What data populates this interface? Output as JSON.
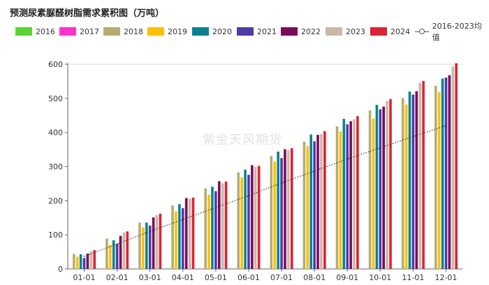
{
  "title": "预测尿素脲醛树脂需求累积图（万吨）",
  "watermark": "紫金天风期货",
  "chart_data": {
    "type": "bar",
    "categories": [
      "01-01",
      "02-01",
      "03-01",
      "04-01",
      "05-01",
      "06-01",
      "07-01",
      "08-01",
      "09-01",
      "10-01",
      "11-01",
      "12-01"
    ],
    "ylim": [
      0,
      600
    ],
    "yticks": [
      0,
      100,
      200,
      300,
      400,
      500,
      600
    ],
    "series": [
      {
        "name": "2016",
        "color": "#5ad233",
        "values": [
          null,
          null,
          null,
          null,
          null,
          null,
          null,
          null,
          null,
          null,
          null,
          null
        ]
      },
      {
        "name": "2017",
        "color": "#ff33cc",
        "values": [
          null,
          null,
          null,
          null,
          null,
          null,
          null,
          null,
          null,
          null,
          null,
          null
        ]
      },
      {
        "name": "2018",
        "color": "#b5ac6f",
        "values": [
          44,
          89,
          136,
          186,
          236,
          283,
          331,
          373,
          418,
          465,
          501,
          537
        ]
      },
      {
        "name": "2019",
        "color": "#ffc000",
        "values": [
          36,
          70,
          122,
          169,
          218,
          268,
          315,
          360,
          403,
          441,
          482,
          518
        ]
      },
      {
        "name": "2020",
        "color": "#0a8290",
        "values": [
          43,
          84,
          136,
          190,
          241,
          291,
          344,
          394,
          440,
          481,
          520,
          558
        ]
      },
      {
        "name": "2021",
        "color": "#4b3ca8",
        "values": [
          32,
          73,
          127,
          178,
          228,
          276,
          325,
          374,
          424,
          468,
          511,
          561
        ]
      },
      {
        "name": "2022",
        "color": "#7a0b5a",
        "values": [
          45,
          97,
          151,
          208,
          257,
          304,
          351,
          393,
          433,
          476,
          521,
          568
        ]
      },
      {
        "name": "2023",
        "color": "#c9b8a8",
        "values": [
          52,
          107,
          158,
          206,
          251,
          299,
          348,
          395,
          439,
          492,
          546,
          593
        ]
      },
      {
        "name": "2024",
        "color": "#dd2233",
        "values": [
          55,
          110,
          162,
          209,
          256,
          302,
          354,
          404,
          448,
          498,
          551,
          603
        ]
      }
    ],
    "average_line": {
      "name": "2016-2023均值",
      "values": [
        37,
        73,
        110,
        145,
        180,
        215,
        252,
        287,
        322,
        355,
        388,
        420
      ]
    }
  }
}
